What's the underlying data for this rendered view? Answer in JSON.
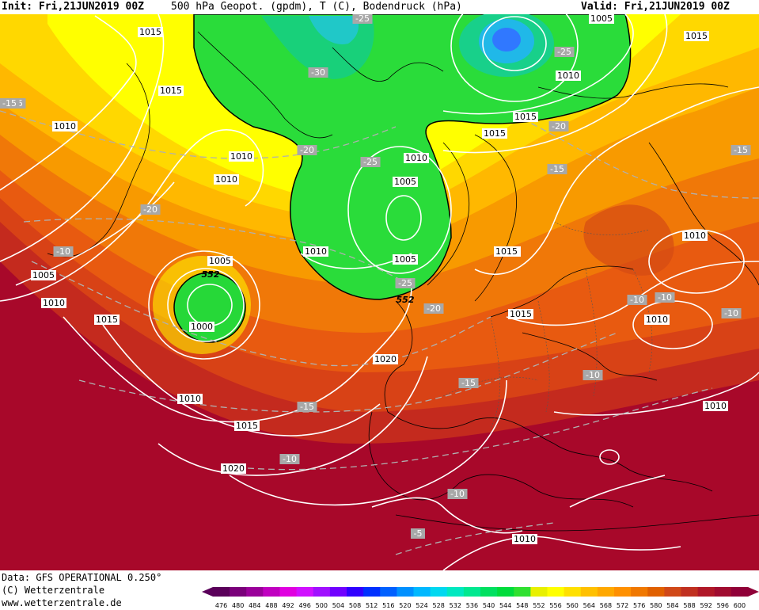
{
  "header": {
    "init": "Init: Fri,21JUN2019 00Z",
    "title": "500 hPa Geopot. (gpdm), T (C), Bodendruck (hPa)",
    "valid": "Valid: Fri,21JUN2019 00Z"
  },
  "footer": {
    "data_source": "Data: GFS OPERATIONAL 0.250°",
    "copyright": "(C) Wetterzentrale",
    "website": "www.wetterzentrale.de"
  },
  "legend": {
    "values": [
      "476",
      "480",
      "484",
      "488",
      "492",
      "496",
      "500",
      "504",
      "508",
      "512",
      "516",
      "520",
      "524",
      "528",
      "532",
      "536",
      "540",
      "544",
      "548",
      "552",
      "556",
      "560",
      "564",
      "568",
      "572",
      "576",
      "580",
      "584",
      "588",
      "592",
      "596",
      "600"
    ],
    "colors": [
      "#5a005a",
      "#7a007a",
      "#9a009a",
      "#c000c0",
      "#e000e0",
      "#d010ff",
      "#a010ff",
      "#7000ff",
      "#3000ff",
      "#0030ff",
      "#0060ff",
      "#0090ff",
      "#00b8ff",
      "#00d8f0",
      "#00e8c0",
      "#00e890",
      "#00e060",
      "#00dc3c",
      "#30e030",
      "#e8f000",
      "#ffff00",
      "#ffe000",
      "#ffc000",
      "#ffa800",
      "#ff9000",
      "#f07800",
      "#e06000",
      "#d04818",
      "#c03020",
      "#b01828",
      "#a00c30",
      "#900038"
    ]
  },
  "isobar_labels": [
    "1015",
    "1015",
    "1010",
    "1010",
    "1010",
    "1005",
    "1005",
    "1005",
    "1000",
    "1010",
    "1015",
    "1010",
    "1015",
    "1020",
    "1015",
    "1010",
    "1005",
    "1005",
    "1010",
    "1010",
    "1015",
    "1015",
    "1015",
    "1010",
    "1010",
    "1010",
    "1020",
    "1010",
    "1010",
    "1015"
  ],
  "temp_labels": [
    "-15",
    "-25",
    "-30",
    "-25",
    "-20",
    "-20",
    "-20",
    "-15",
    "-10",
    "-25",
    "-25",
    "-20",
    "-15",
    "-15",
    "-10",
    "-10",
    "-10",
    "-15",
    "-10",
    "-10",
    "-15",
    "-10",
    "-5"
  ],
  "geopot_labels": [
    "552",
    "552"
  ]
}
